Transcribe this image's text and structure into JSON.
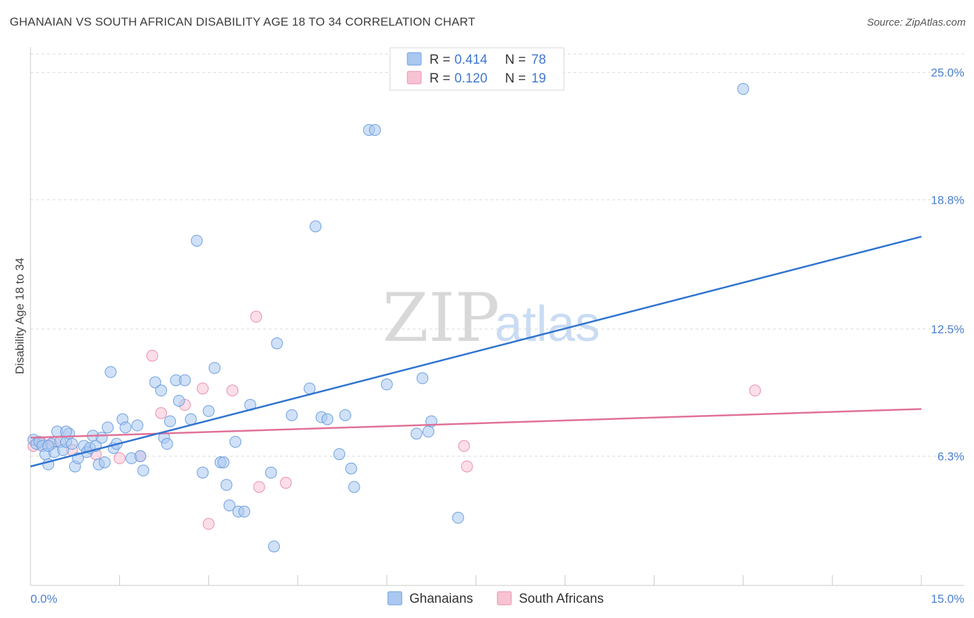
{
  "header": {
    "title": "GHANAIAN VS SOUTH AFRICAN DISABILITY AGE 18 TO 34 CORRELATION CHART",
    "source": "Source: ZipAtlas.com"
  },
  "colors": {
    "blue_fill": "#aac8f0",
    "blue_stroke": "#6b9ee0",
    "blue_line": "#2f74d0",
    "pink_fill": "#f7c3d3",
    "pink_stroke": "#e88fab",
    "pink_line": "#e07096",
    "grid": "#d9d9d9",
    "tick_label": "#4a7fd0"
  },
  "watermark": {
    "zip": "ZIP",
    "atlas": "atlas"
  },
  "legend": {
    "rows": [
      {
        "r_label": "R =",
        "r_value": "0.414",
        "n_label": "N =",
        "n_value": "78"
      },
      {
        "r_label": "R =",
        "r_value": "0.120",
        "n_label": "N =",
        "n_value": "19"
      }
    ]
  },
  "bottom_legend": [
    "Ghanaians",
    "South Africans"
  ],
  "chart_data": {
    "type": "scatter",
    "title": "GHANAIAN VS SOUTH AFRICAN DISABILITY AGE 18 TO 34 CORRELATION CHART",
    "xlabel": "",
    "ylabel": "Disability Age 18 to 34",
    "xlim": [
      0,
      15
    ],
    "ylim": [
      0,
      25.9
    ],
    "x_tick_labels": [
      "0.0%",
      "15.0%"
    ],
    "y_ticks": [
      6.3,
      12.5,
      18.8,
      25.0
    ],
    "y_tick_labels": [
      "6.3%",
      "12.5%",
      "18.8%",
      "25.0%"
    ],
    "series": [
      {
        "name": "Ghanaians",
        "r": 0.414,
        "n": 78,
        "points": [
          [
            0.05,
            7.1
          ],
          [
            0.1,
            6.9
          ],
          [
            0.15,
            7.0
          ],
          [
            0.2,
            6.8
          ],
          [
            0.25,
            6.4
          ],
          [
            0.3,
            5.9
          ],
          [
            0.35,
            6.9
          ],
          [
            0.4,
            6.5
          ],
          [
            0.45,
            7.5
          ],
          [
            0.5,
            7.0
          ],
          [
            0.55,
            6.6
          ],
          [
            0.6,
            7.0
          ],
          [
            0.65,
            7.4
          ],
          [
            0.7,
            6.9
          ],
          [
            0.75,
            5.8
          ],
          [
            0.8,
            6.2
          ],
          [
            0.9,
            6.8
          ],
          [
            0.95,
            6.5
          ],
          [
            1.0,
            6.7
          ],
          [
            1.05,
            7.3
          ],
          [
            1.1,
            6.8
          ],
          [
            1.15,
            5.9
          ],
          [
            1.2,
            7.2
          ],
          [
            1.25,
            6.0
          ],
          [
            1.3,
            7.7
          ],
          [
            1.35,
            10.4
          ],
          [
            1.4,
            6.7
          ],
          [
            1.45,
            6.9
          ],
          [
            1.55,
            8.1
          ],
          [
            1.6,
            7.7
          ],
          [
            1.7,
            6.2
          ],
          [
            1.8,
            7.8
          ],
          [
            1.85,
            6.3
          ],
          [
            1.9,
            5.6
          ],
          [
            2.1,
            9.9
          ],
          [
            2.2,
            9.5
          ],
          [
            2.25,
            7.2
          ],
          [
            2.3,
            6.9
          ],
          [
            2.35,
            8.0
          ],
          [
            2.45,
            10.0
          ],
          [
            2.5,
            9.0
          ],
          [
            2.6,
            10.0
          ],
          [
            2.7,
            8.1
          ],
          [
            2.8,
            16.8
          ],
          [
            2.9,
            5.5
          ],
          [
            3.0,
            8.5
          ],
          [
            3.1,
            10.6
          ],
          [
            3.2,
            6.0
          ],
          [
            3.3,
            4.9
          ],
          [
            3.35,
            3.9
          ],
          [
            3.45,
            7.0
          ],
          [
            3.5,
            3.6
          ],
          [
            3.6,
            3.6
          ],
          [
            3.7,
            8.8
          ],
          [
            4.05,
            5.5
          ],
          [
            4.15,
            11.8
          ],
          [
            4.1,
            1.9
          ],
          [
            4.4,
            8.3
          ],
          [
            4.7,
            9.6
          ],
          [
            4.8,
            17.5
          ],
          [
            4.9,
            8.2
          ],
          [
            5.0,
            8.1
          ],
          [
            5.2,
            6.4
          ],
          [
            5.3,
            8.3
          ],
          [
            5.4,
            5.7
          ],
          [
            5.45,
            4.8
          ],
          [
            5.7,
            22.2
          ],
          [
            5.8,
            22.2
          ],
          [
            6.0,
            9.8
          ],
          [
            6.5,
            7.4
          ],
          [
            6.6,
            10.1
          ],
          [
            6.7,
            7.5
          ],
          [
            6.75,
            8.0
          ],
          [
            7.2,
            3.3
          ],
          [
            12.0,
            24.2
          ],
          [
            0.6,
            7.5
          ],
          [
            0.3,
            6.8
          ],
          [
            3.25,
            6.0
          ]
        ]
      },
      {
        "name": "South Africans",
        "r": 0.12,
        "n": 19,
        "points": [
          [
            0.05,
            6.8
          ],
          [
            0.2,
            6.9
          ],
          [
            0.4,
            7.0
          ],
          [
            0.7,
            6.6
          ],
          [
            1.1,
            6.4
          ],
          [
            1.5,
            6.2
          ],
          [
            1.85,
            6.3
          ],
          [
            2.05,
            11.2
          ],
          [
            2.2,
            8.4
          ],
          [
            2.6,
            8.8
          ],
          [
            2.9,
            9.6
          ],
          [
            3.0,
            3.0
          ],
          [
            3.4,
            9.5
          ],
          [
            3.8,
            13.1
          ],
          [
            3.85,
            4.8
          ],
          [
            4.3,
            5.0
          ],
          [
            7.3,
            6.8
          ],
          [
            7.35,
            5.8
          ],
          [
            12.2,
            9.5
          ]
        ]
      }
    ],
    "trend_lines": [
      {
        "series": "Ghanaians",
        "x": [
          0,
          15
        ],
        "y": [
          5.8,
          17.0
        ]
      },
      {
        "series": "South Africans",
        "x": [
          0,
          15
        ],
        "y": [
          7.2,
          8.6
        ]
      }
    ]
  }
}
